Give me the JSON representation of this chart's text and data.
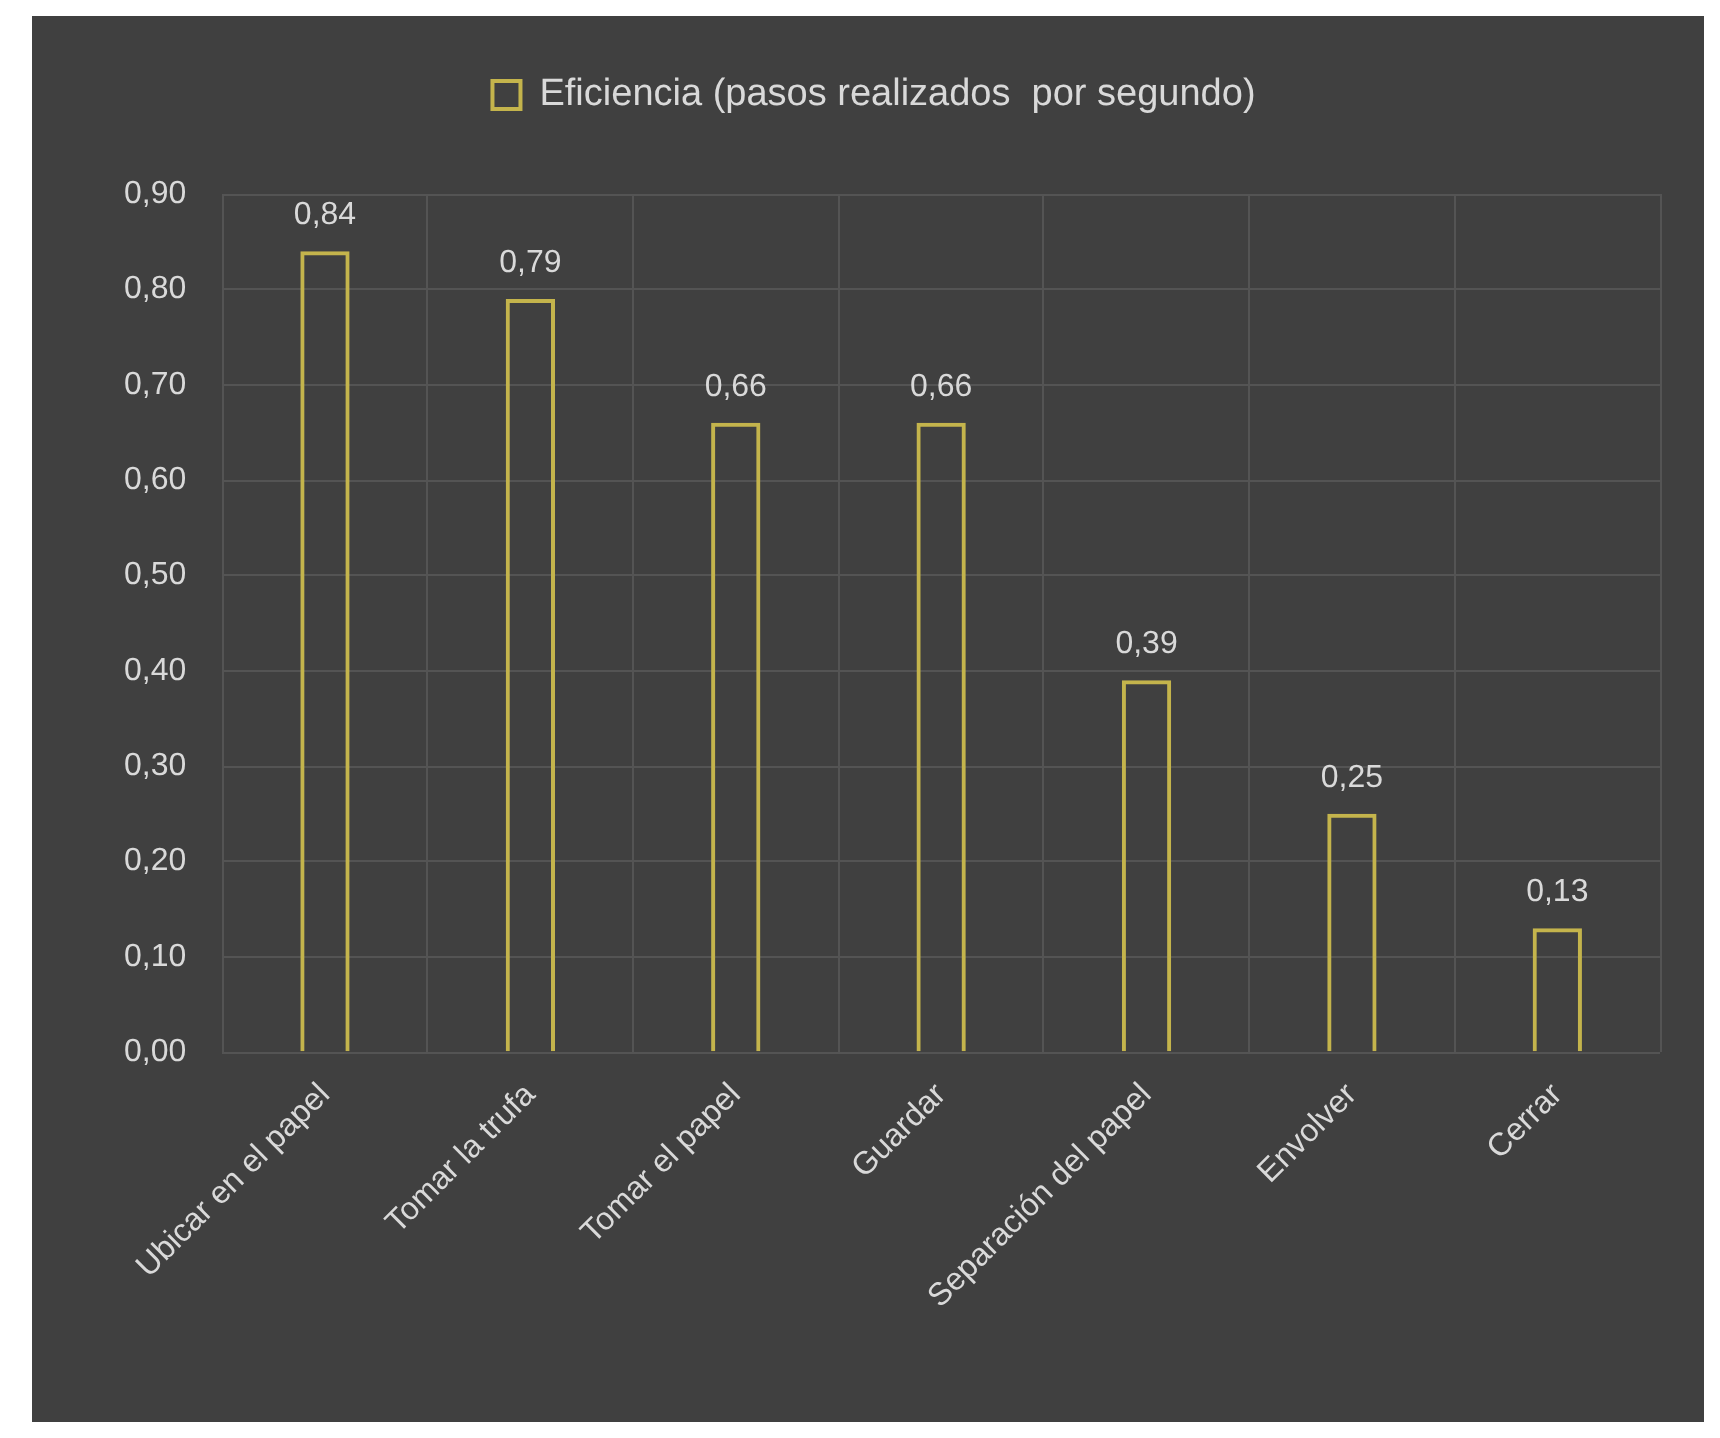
{
  "chart_data": {
    "type": "bar",
    "categories": [
      "Ubicar en el papel",
      "Tomar la trufa",
      "Tomar el papel",
      "Guardar",
      "Separación del papel",
      "Envolver",
      "Cerrar"
    ],
    "series": [
      {
        "name": "Eficiencia (pasos realizados  por segundo)",
        "color": "#c4b44c",
        "values": [
          0.84,
          0.79,
          0.66,
          0.66,
          0.39,
          0.25,
          0.13
        ],
        "value_labels": [
          "0,84",
          "0,79",
          "0,66",
          "0,66",
          "0,39",
          "0,25",
          "0,13"
        ]
      }
    ],
    "ylim": [
      0,
      0.9
    ],
    "yticks": [
      {
        "value": 0,
        "label": "0,00"
      },
      {
        "value": 0.1,
        "label": "0,10"
      },
      {
        "value": 0.2,
        "label": "0,20"
      },
      {
        "value": 0.3,
        "label": "0,30"
      },
      {
        "value": 0.4,
        "label": "0,40"
      },
      {
        "value": 0.5,
        "label": "0,50"
      },
      {
        "value": 0.6,
        "label": "0,60"
      },
      {
        "value": 0.7,
        "label": "0,70"
      },
      {
        "value": 0.8,
        "label": "0,80"
      },
      {
        "value": 0.9,
        "label": "0,90"
      }
    ],
    "grid": true,
    "legend": "top"
  }
}
